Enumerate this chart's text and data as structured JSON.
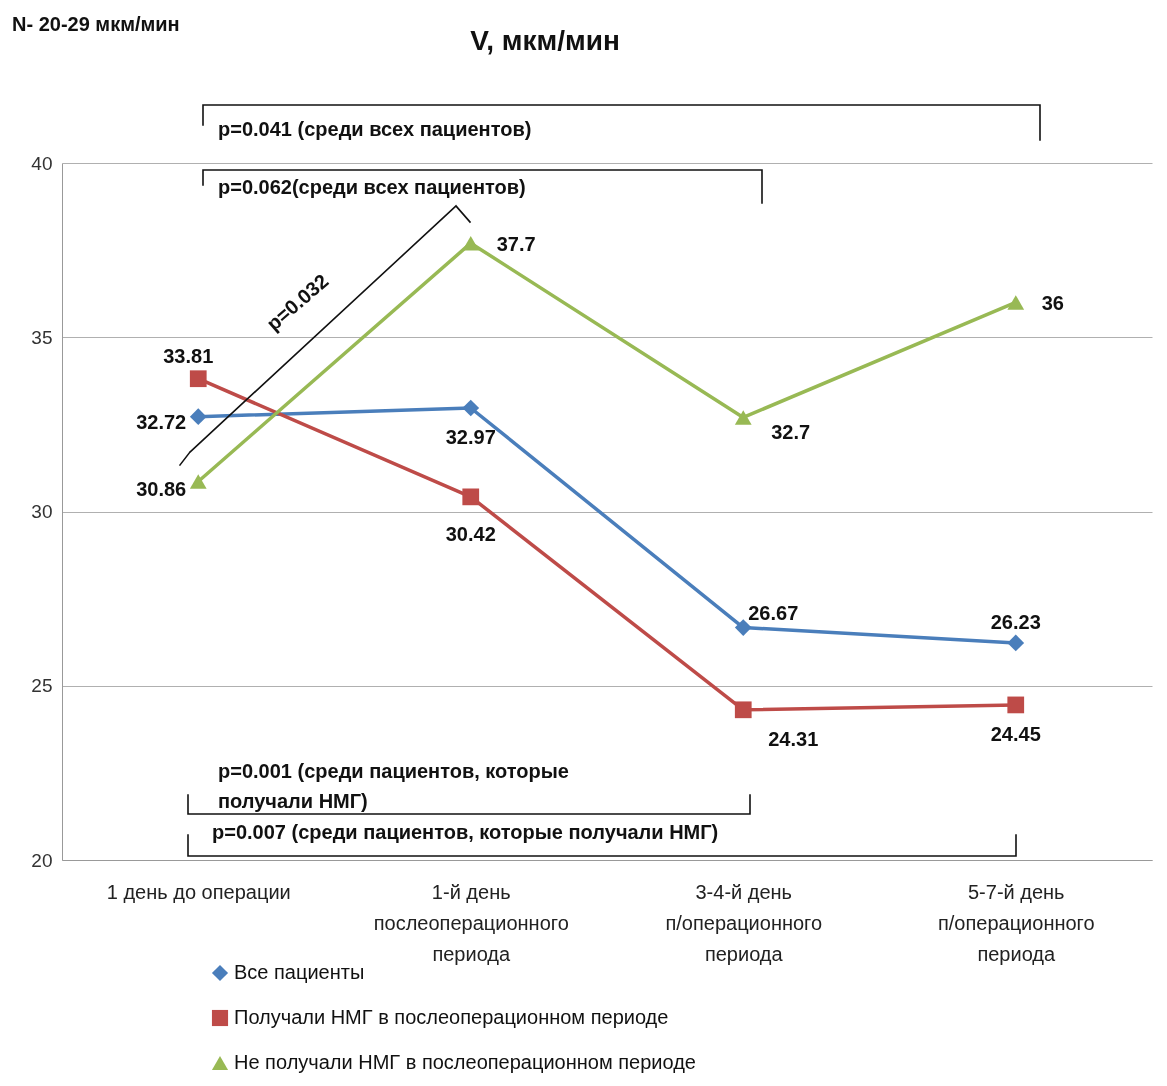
{
  "chart_data": {
    "type": "line",
    "title": "V, мкм/мин",
    "categories": [
      "1 день до операции",
      "1-й день послеоперационного периода",
      "3-4-й день п/операционного периода",
      "5-7-й день п/операционного периода"
    ],
    "series": [
      {
        "name": "Все пациенты",
        "color": "#4a7ebb",
        "marker": "diamond",
        "values": [
          32.72,
          32.97,
          26.67,
          26.23
        ]
      },
      {
        "name": "Получали НМГ в послеоперационном периоде",
        "color": "#be4b48",
        "marker": "square",
        "values": [
          33.81,
          30.42,
          24.31,
          24.45
        ]
      },
      {
        "name": "Не получали НМГ в послеоперационном периоде",
        "color": "#98b954",
        "marker": "triangle",
        "values": [
          30.86,
          37.7,
          32.7,
          36
        ]
      }
    ],
    "ylim": [
      20,
      40
    ],
    "yticks": [
      20,
      25,
      30,
      35,
      40
    ],
    "grid": "y",
    "legend": "bottom left",
    "data_labels": true,
    "annotations": [
      "N- 20-29 мкм/мин",
      "p=0.041 (среди всех пациентов)",
      "p=0.062(среди всех пациентов)",
      "p=0.032",
      "p=0.001 (среди пациентов, которые получали НМГ)",
      "p=0.007 (среди пациентов, которые получали НМГ)"
    ]
  }
}
